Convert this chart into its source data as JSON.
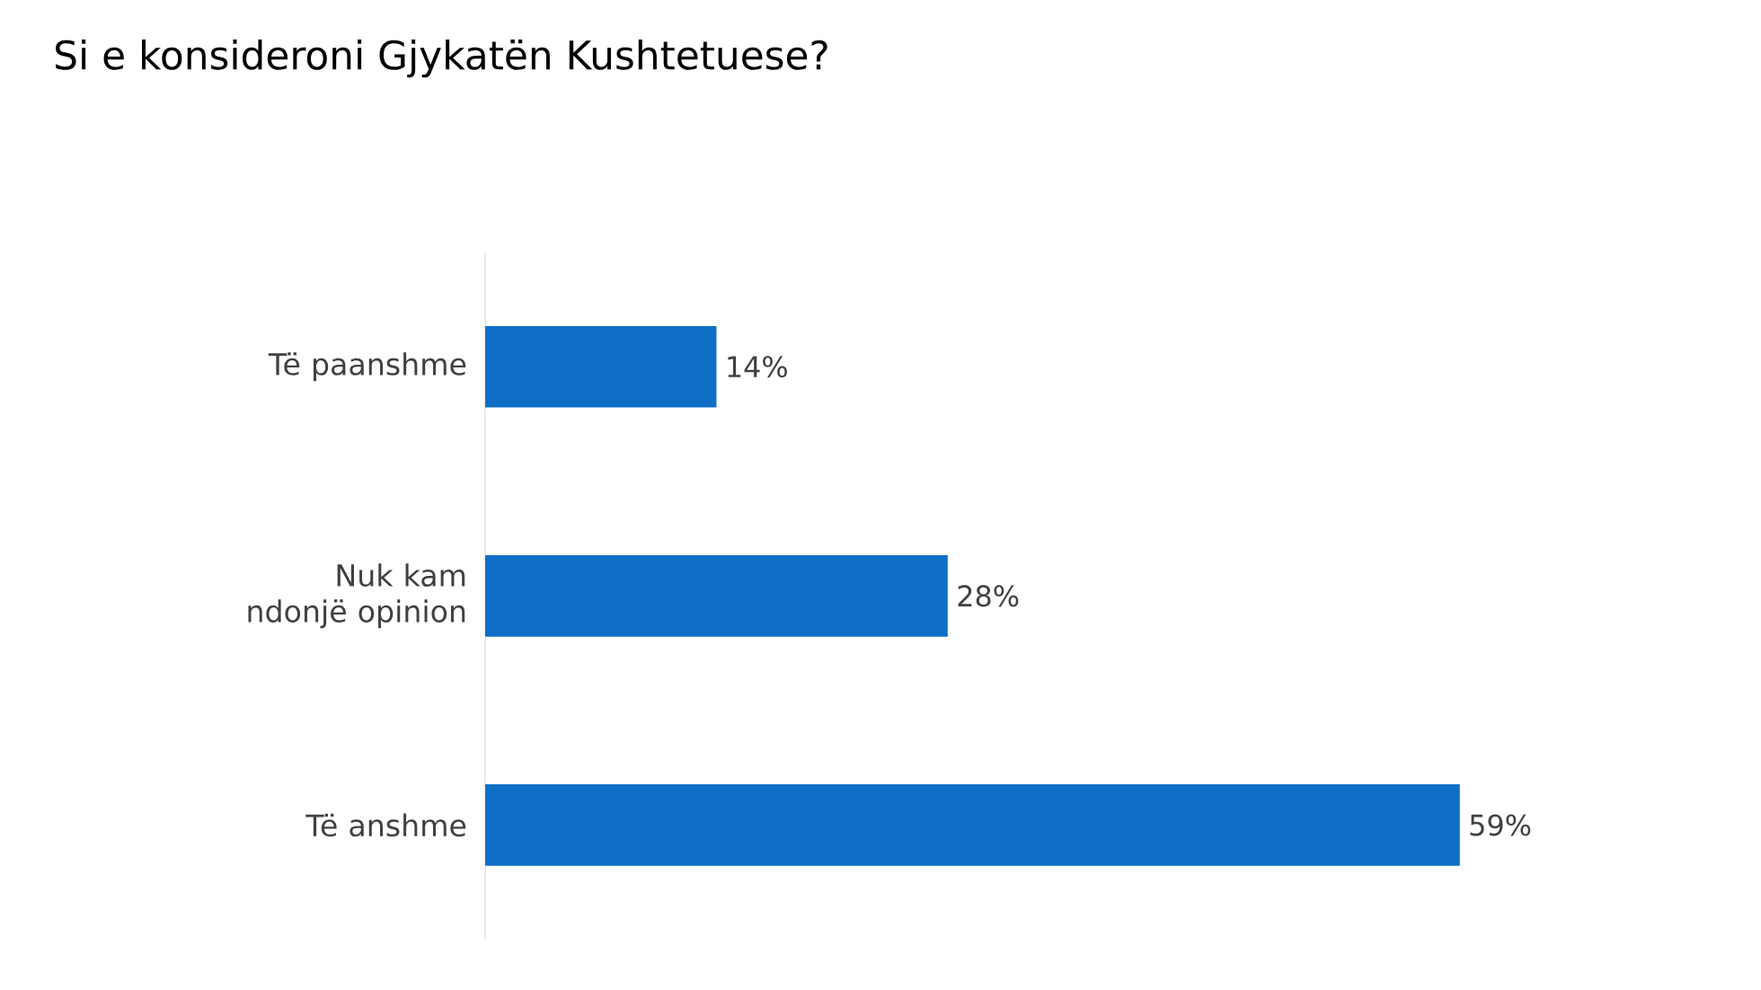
{
  "chart_data": {
    "type": "bar",
    "orientation": "horizontal",
    "title": "Si e konsideroni Gjykatën Kushtetuese?",
    "categories": [
      "Të paanshme",
      "Nuk kam ndonjë opinion",
      "Të anshme"
    ],
    "values": [
      14,
      28,
      59
    ],
    "value_labels": [
      "14%",
      "28%",
      "59%"
    ],
    "color": "#0f6fc6"
  }
}
